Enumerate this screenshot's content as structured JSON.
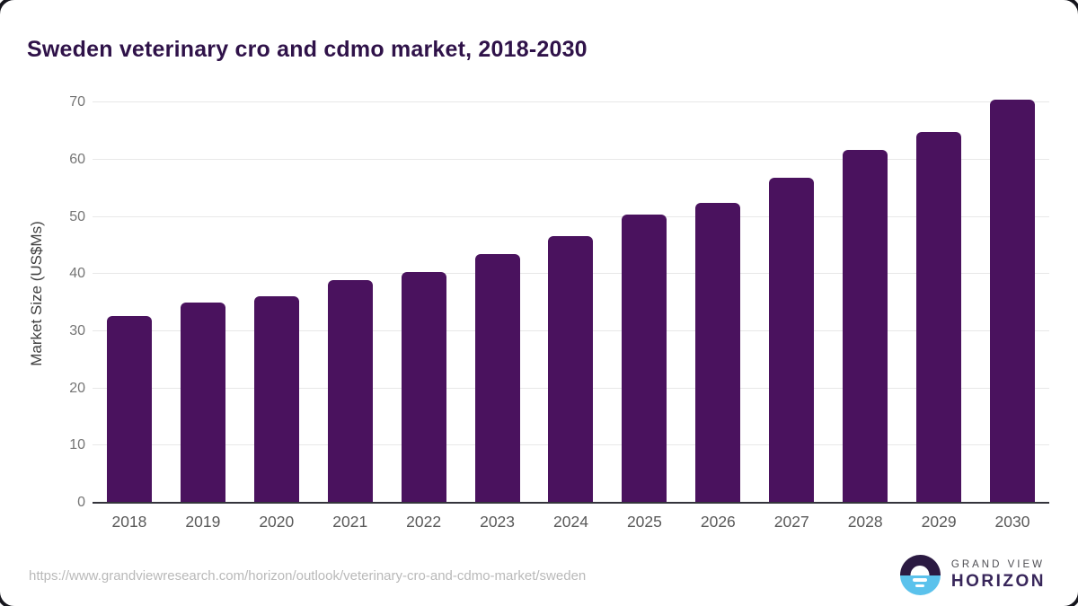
{
  "title": "Sweden veterinary cro and cdmo market, 2018-2030",
  "chart_data": {
    "type": "bar",
    "title": "Sweden veterinary cro and cdmo market, 2018-2030",
    "categories": [
      "2018",
      "2019",
      "2020",
      "2021",
      "2022",
      "2023",
      "2024",
      "2025",
      "2026",
      "2027",
      "2028",
      "2029",
      "2030"
    ],
    "values": [
      32.7,
      35.1,
      36.2,
      38.9,
      40.4,
      43.5,
      46.7,
      50.5,
      52.5,
      56.9,
      61.8,
      64.8,
      70.6
    ],
    "xlabel": "",
    "ylabel": "Market Size (US$Ms)",
    "ylim": [
      0,
      73.2
    ],
    "yticks": [
      0,
      10,
      20,
      30,
      40,
      50,
      60,
      70
    ],
    "grid": "horizontal",
    "legend": "none",
    "bar_color": "#4a125e"
  },
  "footer": {
    "source_url": "https://www.grandviewresearch.com/horizon/outlook/veterinary-cro-and-cdmo-market/sweden",
    "logo": {
      "line1": "GRAND VIEW",
      "line2": "HORIZON"
    }
  },
  "colors": {
    "bar": "#4a125e",
    "title_text": "#2f1249",
    "axis_line": "#34343c",
    "gridline": "#e8e8e8",
    "tick_text": "#757575",
    "x_label_text": "#595959",
    "url_text": "#b9b9b9",
    "logo_dark": "#2b1a42",
    "logo_blue": "#5bc2ec"
  }
}
